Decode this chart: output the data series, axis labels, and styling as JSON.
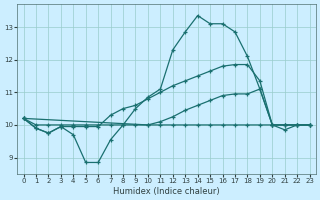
{
  "xlabel": "Humidex (Indice chaleur)",
  "background_color": "#cceeff",
  "grid_color": "#99cccc",
  "line_color": "#1a7070",
  "ylim": [
    8.5,
    13.7
  ],
  "xlim": [
    -0.5,
    23.5
  ],
  "yticks": [
    9,
    10,
    11,
    12,
    13
  ],
  "xticks": [
    0,
    1,
    2,
    3,
    4,
    5,
    6,
    7,
    8,
    9,
    10,
    11,
    12,
    13,
    14,
    15,
    16,
    17,
    18,
    19,
    20,
    21,
    22,
    23
  ],
  "s1_x": [
    0,
    1,
    2,
    3,
    4,
    5,
    6,
    7,
    8,
    9,
    10,
    11,
    12,
    13,
    14,
    15,
    16,
    17,
    18,
    19,
    20,
    21,
    22,
    23
  ],
  "s1_y": [
    10.2,
    9.9,
    9.75,
    9.95,
    9.7,
    8.85,
    8.85,
    9.55,
    10.0,
    10.5,
    10.85,
    11.1,
    12.3,
    12.85,
    13.35,
    13.1,
    13.1,
    12.85,
    12.1,
    11.1,
    10.0,
    9.85,
    10.0,
    10.0
  ],
  "s2_x": [
    0,
    1,
    2,
    3,
    4,
    5,
    6,
    7,
    8,
    9,
    10,
    11,
    12,
    13,
    14,
    15,
    16,
    17,
    18,
    19,
    20,
    21,
    22,
    23
  ],
  "s2_y": [
    10.2,
    9.9,
    9.75,
    9.95,
    9.95,
    9.95,
    9.95,
    10.3,
    10.5,
    10.6,
    10.8,
    11.0,
    11.2,
    11.35,
    11.5,
    11.65,
    11.8,
    11.85,
    11.85,
    11.35,
    10.0,
    10.0,
    10.0,
    10.0
  ],
  "s3_x": [
    0,
    10,
    11,
    12,
    13,
    14,
    15,
    16,
    17,
    18,
    19,
    20,
    21,
    22,
    23
  ],
  "s3_y": [
    10.2,
    10.0,
    10.1,
    10.25,
    10.45,
    10.6,
    10.75,
    10.9,
    10.95,
    10.95,
    11.1,
    10.0,
    10.0,
    10.0,
    10.0
  ],
  "s4_x": [
    0,
    1,
    2,
    3,
    4,
    5,
    6,
    7,
    8,
    9,
    10,
    11,
    12,
    13,
    14,
    15,
    16,
    17,
    18,
    19,
    20,
    21,
    22,
    23
  ],
  "s4_y": [
    10.2,
    10.0,
    10.0,
    10.0,
    10.0,
    10.0,
    10.0,
    10.0,
    10.0,
    10.0,
    10.0,
    10.0,
    10.0,
    10.0,
    10.0,
    10.0,
    10.0,
    10.0,
    10.0,
    10.0,
    10.0,
    10.0,
    10.0,
    10.0
  ]
}
